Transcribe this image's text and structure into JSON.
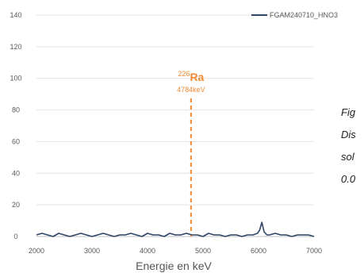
{
  "chart_data": {
    "type": "line",
    "title": "",
    "xlabel": "Energie en keV",
    "ylabel": "",
    "xlim": [
      2000,
      7000
    ],
    "ylim": [
      0,
      140
    ],
    "x_ticks": [
      2000,
      3000,
      4000,
      5000,
      6000,
      7000
    ],
    "y_ticks": [
      0,
      20,
      40,
      60,
      80,
      100,
      120,
      140
    ],
    "grid": "horizontal",
    "legend_position": "top-right",
    "series": [
      {
        "name": "FGAM240710_HNO3",
        "color": "#2f4468",
        "x": [
          2000,
          2100,
          2200,
          2300,
          2400,
          2500,
          2600,
          2700,
          2800,
          2900,
          3000,
          3100,
          3200,
          3300,
          3400,
          3500,
          3600,
          3700,
          3800,
          3900,
          4000,
          4100,
          4200,
          4300,
          4400,
          4500,
          4600,
          4700,
          4800,
          4900,
          5000,
          5100,
          5200,
          5300,
          5400,
          5500,
          5600,
          5700,
          5800,
          5900,
          5980,
          6020,
          6060,
          6100,
          6150,
          6200,
          6300,
          6400,
          6500,
          6600,
          6700,
          6800,
          6900,
          7000
        ],
        "y": [
          1,
          2,
          1,
          0,
          2,
          1,
          0,
          1,
          2,
          1,
          0,
          1,
          2,
          1,
          0,
          1,
          1,
          2,
          1,
          0,
          2,
          1,
          1,
          0,
          2,
          1,
          1,
          2,
          1,
          1,
          0,
          2,
          1,
          1,
          0,
          1,
          1,
          0,
          1,
          1,
          2,
          4,
          9,
          3,
          1,
          1,
          2,
          1,
          1,
          0,
          1,
          1,
          1,
          0
        ]
      }
    ],
    "annotation": {
      "x": 4784,
      "mass_number": "226",
      "element": "Ra",
      "energy_label": "4784keV",
      "color": "#f08a33"
    }
  },
  "caption": {
    "lines": [
      "Fig",
      "Dis",
      "sol",
      "0.0"
    ]
  }
}
